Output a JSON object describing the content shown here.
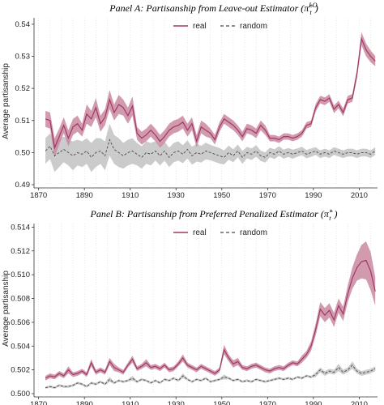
{
  "colors": {
    "real_line": "#a0386a",
    "real_band": "#c9889f",
    "random_line": "#4a4a4a",
    "random_band": "#c8c8c8"
  },
  "chart_data": [
    {
      "type": "line",
      "title": "Panel A: Partisanship from Leave-out Estimator (π̂",
      "title_sup": "LO",
      "title_sub": "t",
      "title_end": ")",
      "xlabel": "",
      "ylabel": "Average partisanship",
      "xlim": [
        1868,
        2018
      ],
      "ylim": [
        0.49,
        0.542
      ],
      "xticks": [
        "1870",
        "1890",
        "1910",
        "1930",
        "1950",
        "1970",
        "1990",
        "2010"
      ],
      "yticks": [
        "0.49",
        "0.50",
        "0.51",
        "0.52",
        "0.53",
        "0.54"
      ],
      "legend": {
        "placement": "top-center",
        "entries": [
          "real",
          "random"
        ]
      },
      "grid": "vertical-dotted",
      "series": [
        {
          "name": "real",
          "x": [
            1873,
            1875,
            1877,
            1879,
            1881,
            1883,
            1885,
            1887,
            1889,
            1891,
            1893,
            1895,
            1897,
            1899,
            1901,
            1903,
            1905,
            1907,
            1909,
            1911,
            1913,
            1915,
            1917,
            1919,
            1921,
            1923,
            1925,
            1927,
            1929,
            1931,
            1933,
            1935,
            1937,
            1939,
            1941,
            1943,
            1945,
            1947,
            1949,
            1951,
            1953,
            1955,
            1957,
            1959,
            1961,
            1963,
            1965,
            1967,
            1969,
            1971,
            1973,
            1975,
            1977,
            1979,
            1981,
            1983,
            1985,
            1987,
            1989,
            1991,
            1993,
            1995,
            1997,
            1999,
            2001,
            2003,
            2005,
            2007,
            2009,
            2011,
            2013,
            2015,
            2017
          ],
          "values": [
            0.5105,
            0.51,
            0.5015,
            0.505,
            0.5085,
            0.5045,
            0.508,
            0.509,
            0.507,
            0.512,
            0.5105,
            0.514,
            0.509,
            0.511,
            0.5165,
            0.5125,
            0.515,
            0.514,
            0.5115,
            0.5145,
            0.506,
            0.5045,
            0.5055,
            0.507,
            0.5055,
            0.5035,
            0.505,
            0.507,
            0.508,
            0.5085,
            0.5095,
            0.507,
            0.509,
            0.5035,
            0.508,
            0.507,
            0.506,
            0.504,
            0.508,
            0.5105,
            0.5095,
            0.5085,
            0.507,
            0.505,
            0.5075,
            0.507,
            0.506,
            0.5085,
            0.507,
            0.5045,
            0.5045,
            0.504,
            0.505,
            0.505,
            0.5045,
            0.505,
            0.506,
            0.5085,
            0.509,
            0.514,
            0.5165,
            0.516,
            0.517,
            0.5135,
            0.515,
            0.5125,
            0.5165,
            0.517,
            0.5245,
            0.5355,
            0.532,
            0.53,
            0.5285
          ],
          "band_halfwidth": [
            0.0025,
            0.0025,
            0.003,
            0.0025,
            0.0025,
            0.0025,
            0.0025,
            0.0025,
            0.002,
            0.003,
            0.0025,
            0.003,
            0.0025,
            0.0025,
            0.003,
            0.0025,
            0.003,
            0.0025,
            0.0025,
            0.003,
            0.002,
            0.002,
            0.002,
            0.002,
            0.002,
            0.002,
            0.002,
            0.002,
            0.002,
            0.002,
            0.002,
            0.002,
            0.002,
            0.002,
            0.002,
            0.002,
            0.0015,
            0.0015,
            0.0015,
            0.0015,
            0.0015,
            0.0015,
            0.0015,
            0.0015,
            0.0015,
            0.0015,
            0.0015,
            0.0015,
            0.0015,
            0.001,
            0.001,
            0.001,
            0.001,
            0.001,
            0.001,
            0.001,
            0.001,
            0.001,
            0.001,
            0.0012,
            0.0012,
            0.0012,
            0.0012,
            0.0012,
            0.0012,
            0.0012,
            0.0012,
            0.0012,
            0.0015,
            0.002,
            0.002,
            0.0018,
            0.0016
          ]
        },
        {
          "name": "random",
          "x": [
            1873,
            1875,
            1877,
            1879,
            1881,
            1883,
            1885,
            1887,
            1889,
            1891,
            1893,
            1895,
            1897,
            1899,
            1901,
            1903,
            1905,
            1907,
            1909,
            1911,
            1913,
            1915,
            1917,
            1919,
            1921,
            1923,
            1925,
            1927,
            1929,
            1931,
            1933,
            1935,
            1937,
            1939,
            1941,
            1943,
            1945,
            1947,
            1949,
            1951,
            1953,
            1955,
            1957,
            1959,
            1961,
            1963,
            1965,
            1967,
            1969,
            1971,
            1973,
            1975,
            1977,
            1979,
            1981,
            1983,
            1985,
            1987,
            1989,
            1991,
            1993,
            1995,
            1997,
            1999,
            2001,
            2003,
            2005,
            2007,
            2009,
            2011,
            2013,
            2015,
            2017
          ],
          "values": [
            0.5005,
            0.502,
            0.499,
            0.5,
            0.501,
            0.5,
            0.499,
            0.5,
            0.4995,
            0.5005,
            0.4985,
            0.5,
            0.5005,
            0.499,
            0.504,
            0.501,
            0.5,
            0.499,
            0.5,
            0.5005,
            0.4995,
            0.4985,
            0.5,
            0.4995,
            0.5005,
            0.499,
            0.5005,
            0.4985,
            0.5,
            0.5005,
            0.4995,
            0.501,
            0.499,
            0.5,
            0.4995,
            0.5005,
            0.5,
            0.4995,
            0.499,
            0.4985,
            0.5,
            0.499,
            0.5005,
            0.4985,
            0.5,
            0.4995,
            0.5005,
            0.499,
            0.4985,
            0.5,
            0.4995,
            0.5005,
            0.4995,
            0.5,
            0.4995,
            0.5,
            0.5005,
            0.4995,
            0.5,
            0.5005,
            0.4995,
            0.5,
            0.4995,
            0.5005,
            0.5,
            0.4995,
            0.5,
            0.5,
            0.4995,
            0.5,
            0.5,
            0.4995,
            0.5005
          ],
          "band_halfwidth": [
            0.004,
            0.004,
            0.005,
            0.0045,
            0.004,
            0.004,
            0.0045,
            0.004,
            0.004,
            0.004,
            0.0045,
            0.0045,
            0.004,
            0.0045,
            0.005,
            0.0045,
            0.0045,
            0.004,
            0.004,
            0.004,
            0.0035,
            0.0035,
            0.0035,
            0.0035,
            0.003,
            0.003,
            0.003,
            0.003,
            0.003,
            0.003,
            0.0028,
            0.0028,
            0.0028,
            0.0028,
            0.0026,
            0.0026,
            0.0024,
            0.0024,
            0.0024,
            0.0022,
            0.0022,
            0.002,
            0.002,
            0.002,
            0.0018,
            0.0018,
            0.0018,
            0.0016,
            0.0016,
            0.0015,
            0.0015,
            0.0015,
            0.0014,
            0.0014,
            0.0014,
            0.0013,
            0.0013,
            0.0013,
            0.0013,
            0.0012,
            0.0012,
            0.0012,
            0.0012,
            0.0012,
            0.0012,
            0.0012,
            0.0012,
            0.0012,
            0.0012,
            0.0012,
            0.0012,
            0.0012,
            0.0012
          ]
        }
      ]
    },
    {
      "type": "line",
      "title": "Panel B: Partisanship from Preferred Penalized Estimator (π̂",
      "title_sup": "+",
      "title_sub": "t",
      "title_end": ")",
      "xlabel": "",
      "ylabel": "Average partisanship",
      "xlim": [
        1868,
        2018
      ],
      "ylim": [
        0.5,
        0.5143
      ],
      "xticks": [
        "1870",
        "1890",
        "1910",
        "1930",
        "1950",
        "1970",
        "1990",
        "2010"
      ],
      "yticks": [
        "0.500",
        "0.502",
        "0.504",
        "0.506",
        "0.508",
        "0.510",
        "0.512",
        "0.514"
      ],
      "legend": {
        "placement": "top-center",
        "entries": [
          "real",
          "random"
        ]
      },
      "grid": "vertical-dotted",
      "series": [
        {
          "name": "real",
          "x": [
            1873,
            1875,
            1877,
            1879,
            1881,
            1883,
            1885,
            1887,
            1889,
            1891,
            1893,
            1895,
            1897,
            1899,
            1901,
            1903,
            1905,
            1907,
            1909,
            1911,
            1913,
            1915,
            1917,
            1919,
            1921,
            1923,
            1925,
            1927,
            1929,
            1931,
            1933,
            1935,
            1937,
            1939,
            1941,
            1943,
            1945,
            1947,
            1949,
            1951,
            1953,
            1955,
            1957,
            1959,
            1961,
            1963,
            1965,
            1967,
            1969,
            1971,
            1973,
            1975,
            1977,
            1979,
            1981,
            1983,
            1985,
            1987,
            1989,
            1991,
            1993,
            1995,
            1997,
            1999,
            2001,
            2003,
            2005,
            2007,
            2009,
            2011,
            2013,
            2015,
            2017
          ],
          "values": [
            0.5013,
            0.5015,
            0.5014,
            0.5017,
            0.5015,
            0.502,
            0.5016,
            0.5017,
            0.5019,
            0.5016,
            0.5026,
            0.5018,
            0.502,
            0.5018,
            0.5027,
            0.5022,
            0.502,
            0.5018,
            0.5024,
            0.5029,
            0.5021,
            0.5023,
            0.5026,
            0.5022,
            0.5023,
            0.5021,
            0.5024,
            0.502,
            0.5021,
            0.5025,
            0.503,
            0.5024,
            0.5022,
            0.502,
            0.5023,
            0.5021,
            0.5019,
            0.5017,
            0.502,
            0.5037,
            0.503,
            0.5025,
            0.5027,
            0.5022,
            0.5021,
            0.5023,
            0.5024,
            0.5022,
            0.502,
            0.5019,
            0.5021,
            0.5022,
            0.5021,
            0.5024,
            0.5026,
            0.5025,
            0.5029,
            0.5033,
            0.504,
            0.5054,
            0.5071,
            0.5066,
            0.507,
            0.5062,
            0.5074,
            0.5067,
            0.5084,
            0.5097,
            0.5106,
            0.5111,
            0.5112,
            0.5103,
            0.5086
          ],
          "band_halfwidth": [
            0.0002,
            0.0002,
            0.0002,
            0.0002,
            0.0002,
            0.0003,
            0.0002,
            0.0002,
            0.0002,
            0.0002,
            0.0003,
            0.0002,
            0.0002,
            0.0002,
            0.0003,
            0.0003,
            0.0002,
            0.0002,
            0.0002,
            0.0003,
            0.0002,
            0.0002,
            0.0003,
            0.0002,
            0.0002,
            0.0002,
            0.0002,
            0.0002,
            0.0002,
            0.0002,
            0.0003,
            0.0002,
            0.0002,
            0.0002,
            0.0002,
            0.0002,
            0.0002,
            0.0002,
            0.0002,
            0.0004,
            0.0003,
            0.0003,
            0.0003,
            0.0002,
            0.0002,
            0.0002,
            0.0002,
            0.0002,
            0.0002,
            0.0002,
            0.0002,
            0.0002,
            0.0002,
            0.0002,
            0.0002,
            0.0002,
            0.0003,
            0.0003,
            0.0004,
            0.0005,
            0.0006,
            0.0006,
            0.0006,
            0.0006,
            0.0006,
            0.0006,
            0.0007,
            0.0009,
            0.0011,
            0.0014,
            0.0016,
            0.0016,
            0.0012
          ]
        },
        {
          "name": "random",
          "x": [
            1873,
            1875,
            1877,
            1879,
            1881,
            1883,
            1885,
            1887,
            1889,
            1891,
            1893,
            1895,
            1897,
            1899,
            1901,
            1903,
            1905,
            1907,
            1909,
            1911,
            1913,
            1915,
            1917,
            1919,
            1921,
            1923,
            1925,
            1927,
            1929,
            1931,
            1933,
            1935,
            1937,
            1939,
            1941,
            1943,
            1945,
            1947,
            1949,
            1951,
            1953,
            1955,
            1957,
            1959,
            1961,
            1963,
            1965,
            1967,
            1969,
            1971,
            1973,
            1975,
            1977,
            1979,
            1981,
            1983,
            1985,
            1987,
            1989,
            1991,
            1993,
            1995,
            1997,
            1999,
            2001,
            2003,
            2005,
            2007,
            2009,
            2011,
            2013,
            2015,
            2017
          ],
          "values": [
            0.5005,
            0.5006,
            0.5005,
            0.5007,
            0.5006,
            0.5006,
            0.5007,
            0.5009,
            0.5008,
            0.5006,
            0.5009,
            0.5008,
            0.501,
            0.5008,
            0.5012,
            0.5009,
            0.5011,
            0.501,
            0.5011,
            0.5013,
            0.501,
            0.5012,
            0.5011,
            0.5009,
            0.5011,
            0.5009,
            0.5012,
            0.5011,
            0.5013,
            0.5011,
            0.5015,
            0.5012,
            0.501,
            0.5012,
            0.5011,
            0.5013,
            0.501,
            0.5011,
            0.5012,
            0.5014,
            0.5013,
            0.5011,
            0.5012,
            0.501,
            0.5011,
            0.501,
            0.5012,
            0.5011,
            0.501,
            0.5011,
            0.5012,
            0.5013,
            0.5012,
            0.5013,
            0.5012,
            0.5014,
            0.5013,
            0.5015,
            0.5014,
            0.5016,
            0.502,
            0.5017,
            0.5019,
            0.5018,
            0.5022,
            0.5018,
            0.502,
            0.5024,
            0.5019,
            0.5017,
            0.5018,
            0.5019,
            0.5021
          ],
          "band_halfwidth": [
            0.0001,
            0.0001,
            0.0001,
            0.0001,
            0.0001,
            0.0001,
            0.0001,
            0.0001,
            0.0001,
            0.0001,
            0.0001,
            0.0001,
            0.0001,
            0.0001,
            0.0002,
            0.0001,
            0.0001,
            0.0001,
            0.0001,
            0.0002,
            0.0001,
            0.0001,
            0.0001,
            0.0001,
            0.0001,
            0.0001,
            0.0001,
            0.0001,
            0.0001,
            0.0001,
            0.0002,
            0.0001,
            0.0001,
            0.0001,
            0.0001,
            0.0001,
            0.0001,
            0.0001,
            0.0001,
            0.0002,
            0.0001,
            0.0001,
            0.0001,
            0.0001,
            0.0001,
            0.0001,
            0.0001,
            0.0001,
            0.0001,
            0.0001,
            0.0001,
            0.0001,
            0.0001,
            0.0001,
            0.0001,
            0.0001,
            0.0001,
            0.0001,
            0.0001,
            0.0002,
            0.0002,
            0.0002,
            0.0002,
            0.0002,
            0.0003,
            0.0002,
            0.0002,
            0.0003,
            0.0002,
            0.0002,
            0.0002,
            0.0002,
            0.0002
          ]
        }
      ]
    }
  ]
}
